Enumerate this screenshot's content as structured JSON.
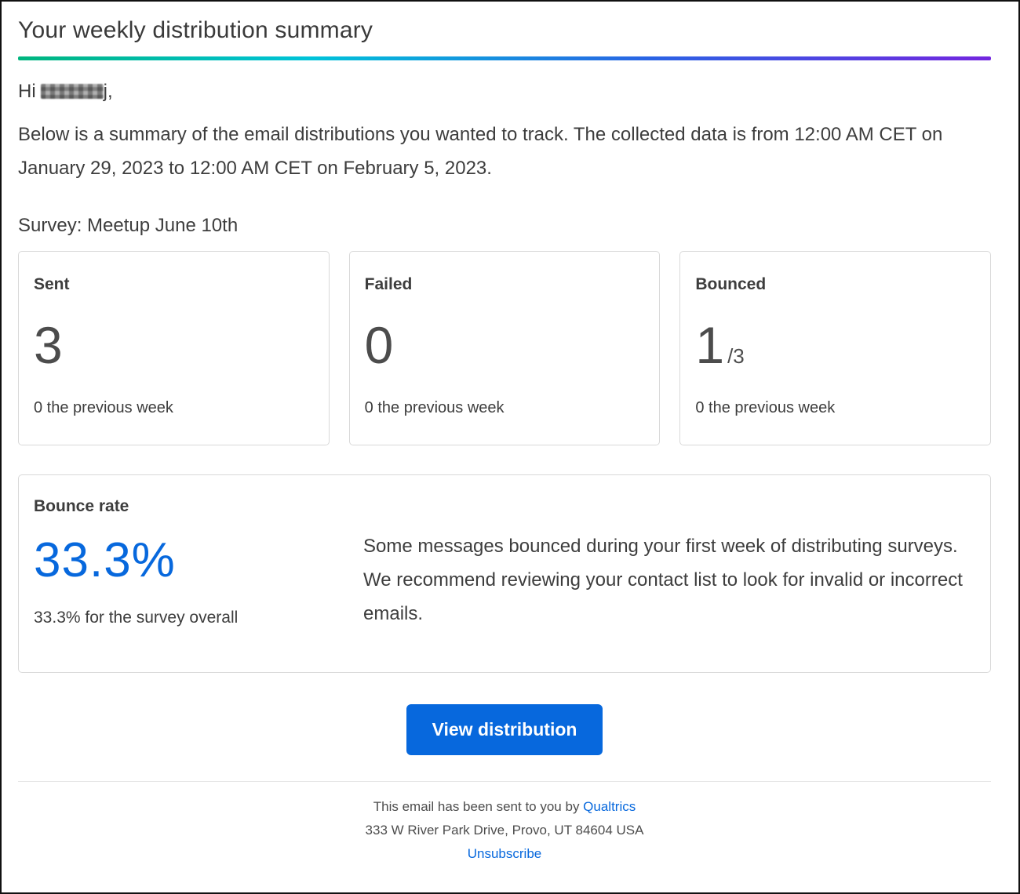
{
  "header": {
    "title": "Your weekly distribution summary"
  },
  "greeting": {
    "prefix": "Hi",
    "suffix": "j,"
  },
  "intro": "Below is a summary of the email distributions you wanted to track. The collected data is from 12:00 AM CET on January 29, 2023 to 12:00 AM CET on February 5, 2023.",
  "survey": {
    "label": "Survey: Meetup June 10th"
  },
  "stats": [
    {
      "label": "Sent",
      "value": "3",
      "value_suffix": "",
      "sub": "0 the previous week"
    },
    {
      "label": "Failed",
      "value": "0",
      "value_suffix": "",
      "sub": "0 the previous week"
    },
    {
      "label": "Bounced",
      "value": "1",
      "value_suffix": "/3",
      "sub": "0 the previous week"
    }
  ],
  "bounce_rate": {
    "label": "Bounce rate",
    "value": "33.3%",
    "sub": "33.3% for the survey overall",
    "message": "Some messages bounced during your first week of distributing surveys. We recommend reviewing your contact list to look for invalid or incorrect emails."
  },
  "cta": {
    "label": "View distribution"
  },
  "footer": {
    "sent_by_prefix": "This email has been sent to you by",
    "brand": "Qualtrics",
    "address": "333 W River Park Drive, Provo, UT 84604 USA",
    "unsubscribe": "Unsubscribe"
  },
  "colors": {
    "accent_blue": "#0768dd",
    "grad_1": "#00b57e",
    "grad_2": "#00c3d9",
    "grad_3": "#2a63e4",
    "grad_4": "#7326df"
  }
}
